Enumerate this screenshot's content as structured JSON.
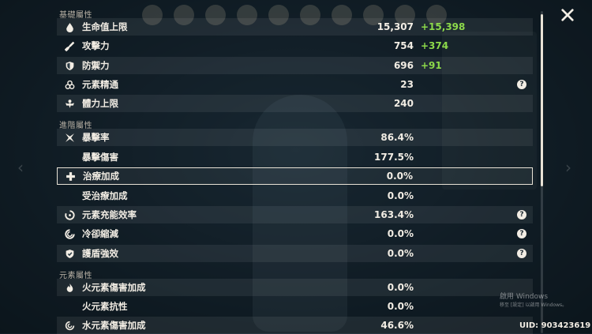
{
  "sections": {
    "base": "基礎屬性",
    "advanced": "進階屬性",
    "elemental": "元素屬性"
  },
  "stats": [
    {
      "label": "生命值上限",
      "value": "15,307",
      "bonus": "+15,398",
      "icon": "hp-drop-icon"
    },
    {
      "label": "攻擊力",
      "value": "754",
      "bonus": "+374",
      "icon": "sword-icon"
    },
    {
      "label": "防禦力",
      "value": "696",
      "bonus": "+91",
      "icon": "shield-icon"
    },
    {
      "label": "元素精通",
      "value": "23",
      "help": "?",
      "icon": "elemental-mastery-icon"
    },
    {
      "label": "體力上限",
      "value": "240",
      "icon": "stamina-icon"
    },
    {
      "label": "暴擊率",
      "value": "86.4%",
      "icon": "crit-rate-icon"
    },
    {
      "label": "暴擊傷害",
      "value": "177.5%"
    },
    {
      "label": "治療加成",
      "value": "0.0%",
      "icon": "healing-cross-icon"
    },
    {
      "label": "受治療加成",
      "value": "0.0%"
    },
    {
      "label": "元素充能效率",
      "value": "163.4%",
      "help": "?",
      "icon": "energy-recharge-icon"
    },
    {
      "label": "冷卻縮減",
      "value": "0.0%",
      "help": "?",
      "icon": "cooldown-icon"
    },
    {
      "label": "護盾強效",
      "value": "0.0%",
      "help": "?",
      "icon": "shield-strength-icon"
    },
    {
      "label": "火元素傷害加成",
      "value": "0.0%",
      "icon": "pyro-icon"
    },
    {
      "label": "火元素抗性",
      "value": "0.0%"
    },
    {
      "label": "水元素傷害加成",
      "value": "46.6%",
      "icon": "hydro-icon"
    }
  ],
  "watermark": {
    "line1": "啟用 Windows",
    "line2": "移至 [設定] 以啟用 Windows。"
  },
  "uid": "UID: 903423619",
  "colors": {
    "bonus": "#8cd94a",
    "text": "#f2ede4"
  }
}
